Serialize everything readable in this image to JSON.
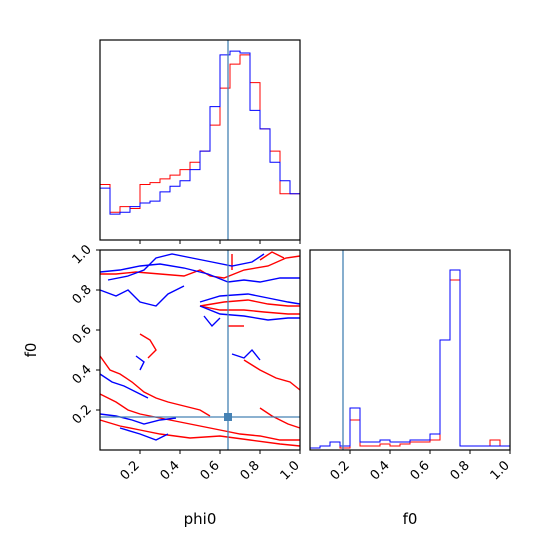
{
  "chart_data": {
    "type": "corner",
    "parameters": [
      "phi0",
      "f0"
    ],
    "xlabels": [
      "phi0",
      "f0"
    ],
    "ylabels": [
      "",
      "f0"
    ],
    "ranges": {
      "phi0": [
        0,
        1
      ],
      "f0": [
        0,
        1
      ]
    },
    "ticks": {
      "phi0": [
        "0.2",
        "0.4",
        "0.6",
        "0.8",
        "1.0"
      ],
      "f0": [
        "0.2",
        "0.4",
        "0.6",
        "0.8",
        "1.0"
      ]
    },
    "truths": {
      "phi0": 0.64,
      "f0": 0.165
    },
    "colors": {
      "red": "#ff0000",
      "blue": "#0000ff",
      "truth": "#4682b4"
    },
    "histograms": {
      "phi0": {
        "bin_edges": [
          0.0,
          0.05,
          0.1,
          0.15,
          0.2,
          0.25,
          0.3,
          0.35,
          0.4,
          0.45,
          0.5,
          0.55,
          0.6,
          0.65,
          0.7,
          0.75,
          0.8,
          0.85,
          0.9,
          0.95,
          1.0
        ],
        "red": [
          0.3,
          0.15,
          0.18,
          0.17,
          0.3,
          0.31,
          0.33,
          0.35,
          0.38,
          0.42,
          0.48,
          0.62,
          0.82,
          0.95,
          1.0,
          0.85,
          0.6,
          0.48,
          0.25,
          0.25
        ],
        "blue": [
          0.28,
          0.14,
          0.15,
          0.18,
          0.2,
          0.21,
          0.26,
          0.29,
          0.32,
          0.38,
          0.48,
          0.72,
          1.0,
          1.02,
          1.01,
          0.7,
          0.6,
          0.42,
          0.32,
          0.25
        ]
      },
      "f0": {
        "bin_edges": [
          0.0,
          0.05,
          0.1,
          0.15,
          0.2,
          0.25,
          0.3,
          0.35,
          0.4,
          0.45,
          0.5,
          0.55,
          0.6,
          0.65,
          0.7,
          0.75,
          0.8,
          0.85,
          0.9,
          0.95,
          1.0
        ],
        "red": [
          0.01,
          0.02,
          0.04,
          0.01,
          0.15,
          0.02,
          0.02,
          0.03,
          0.02,
          0.03,
          0.04,
          0.04,
          0.05,
          0.55,
          0.85,
          0.02,
          0.02,
          0.02,
          0.05,
          0.02
        ],
        "blue": [
          0.01,
          0.02,
          0.04,
          0.02,
          0.21,
          0.04,
          0.04,
          0.05,
          0.04,
          0.04,
          0.05,
          0.05,
          0.08,
          0.55,
          0.9,
          0.02,
          0.02,
          0.02,
          0.02,
          0.02
        ]
      }
    },
    "contours_2d": {
      "x": "phi0",
      "y": "f0",
      "red": [
        [
          [
            0.0,
            0.88
          ],
          [
            0.08,
            0.88
          ],
          [
            0.18,
            0.89
          ],
          [
            0.3,
            0.88
          ],
          [
            0.42,
            0.87
          ],
          [
            0.5,
            0.9
          ],
          [
            0.55,
            0.87
          ],
          [
            0.62,
            0.86
          ],
          [
            0.72,
            0.9
          ],
          [
            0.84,
            0.92
          ],
          [
            0.93,
            0.96
          ],
          [
            1.0,
            0.97
          ]
        ],
        [
          [
            0.5,
            0.72
          ],
          [
            0.62,
            0.74
          ],
          [
            0.74,
            0.75
          ],
          [
            0.84,
            0.73
          ],
          [
            0.94,
            0.72
          ],
          [
            1.0,
            0.72
          ]
        ],
        [
          [
            0.5,
            0.72
          ],
          [
            0.6,
            0.7
          ],
          [
            0.72,
            0.7
          ],
          [
            0.82,
            0.69
          ],
          [
            0.94,
            0.68
          ],
          [
            1.0,
            0.68
          ]
        ],
        [
          [
            0.0,
            0.47
          ],
          [
            0.05,
            0.4
          ],
          [
            0.1,
            0.38
          ],
          [
            0.16,
            0.34
          ],
          [
            0.22,
            0.29
          ],
          [
            0.28,
            0.26
          ],
          [
            0.34,
            0.24
          ],
          [
            0.42,
            0.22
          ],
          [
            0.5,
            0.2
          ],
          [
            0.55,
            0.17
          ]
        ],
        [
          [
            0.0,
            0.28
          ],
          [
            0.08,
            0.24
          ],
          [
            0.14,
            0.2
          ],
          [
            0.2,
            0.18
          ],
          [
            0.3,
            0.16
          ],
          [
            0.4,
            0.14
          ],
          [
            0.5,
            0.12
          ],
          [
            0.6,
            0.1
          ],
          [
            0.7,
            0.08
          ],
          [
            0.8,
            0.07
          ],
          [
            0.9,
            0.05
          ],
          [
            1.0,
            0.05
          ]
        ],
        [
          [
            0.72,
            0.45
          ],
          [
            0.8,
            0.4
          ],
          [
            0.88,
            0.36
          ],
          [
            0.95,
            0.34
          ],
          [
            1.0,
            0.3
          ]
        ],
        [
          [
            0.0,
            0.15
          ],
          [
            0.1,
            0.12
          ],
          [
            0.2,
            0.1
          ],
          [
            0.3,
            0.08
          ],
          [
            0.45,
            0.06
          ],
          [
            0.6,
            0.07
          ],
          [
            0.75,
            0.05
          ],
          [
            0.9,
            0.03
          ],
          [
            1.0,
            0.02
          ]
        ],
        [
          [
            0.2,
            0.58
          ],
          [
            0.25,
            0.55
          ],
          [
            0.28,
            0.5
          ],
          [
            0.24,
            0.46
          ]
        ],
        [
          [
            0.66,
            0.98
          ],
          [
            0.66,
            0.9
          ]
        ],
        [
          [
            0.64,
            0.62
          ],
          [
            0.72,
            0.62
          ]
        ],
        [
          [
            0.8,
            0.95
          ],
          [
            0.86,
            0.99
          ],
          [
            0.92,
            0.96
          ]
        ],
        [
          [
            0.8,
            0.21
          ],
          [
            0.86,
            0.17
          ],
          [
            0.94,
            0.13
          ],
          [
            1.0,
            0.11
          ]
        ]
      ],
      "blue": [
        [
          [
            0.0,
            0.89
          ],
          [
            0.1,
            0.9
          ],
          [
            0.2,
            0.92
          ],
          [
            0.3,
            0.93
          ],
          [
            0.42,
            0.91
          ],
          [
            0.54,
            0.88
          ],
          [
            0.64,
            0.84
          ],
          [
            0.72,
            0.85
          ],
          [
            0.8,
            0.84
          ],
          [
            0.9,
            0.86
          ],
          [
            1.0,
            0.86
          ]
        ],
        [
          [
            0.04,
            0.85
          ],
          [
            0.14,
            0.87
          ],
          [
            0.22,
            0.9
          ],
          [
            0.28,
            0.96
          ],
          [
            0.36,
            0.98
          ],
          [
            0.46,
            0.96
          ],
          [
            0.56,
            0.94
          ],
          [
            0.66,
            0.92
          ],
          [
            0.76,
            0.94
          ],
          [
            0.82,
            0.98
          ]
        ],
        [
          [
            0.0,
            0.8
          ],
          [
            0.08,
            0.77
          ],
          [
            0.14,
            0.8
          ],
          [
            0.2,
            0.74
          ],
          [
            0.28,
            0.72
          ],
          [
            0.34,
            0.78
          ],
          [
            0.42,
            0.82
          ]
        ],
        [
          [
            0.5,
            0.74
          ],
          [
            0.6,
            0.77
          ],
          [
            0.74,
            0.78
          ],
          [
            0.84,
            0.76
          ],
          [
            0.94,
            0.74
          ],
          [
            1.0,
            0.73
          ]
        ],
        [
          [
            0.5,
            0.72
          ],
          [
            0.6,
            0.68
          ],
          [
            0.72,
            0.67
          ],
          [
            0.84,
            0.65
          ],
          [
            0.94,
            0.66
          ],
          [
            1.0,
            0.66
          ]
        ],
        [
          [
            0.0,
            0.38
          ],
          [
            0.06,
            0.34
          ],
          [
            0.12,
            0.32
          ],
          [
            0.18,
            0.29
          ],
          [
            0.24,
            0.26
          ]
        ],
        [
          [
            0.0,
            0.18
          ],
          [
            0.08,
            0.17
          ],
          [
            0.16,
            0.15
          ],
          [
            0.22,
            0.13
          ],
          [
            0.3,
            0.15
          ],
          [
            0.38,
            0.16
          ]
        ],
        [
          [
            0.1,
            0.11
          ],
          [
            0.2,
            0.08
          ],
          [
            0.28,
            0.05
          ],
          [
            0.34,
            0.08
          ]
        ],
        [
          [
            0.52,
            0.67
          ],
          [
            0.56,
            0.62
          ],
          [
            0.6,
            0.66
          ]
        ],
        [
          [
            0.66,
            0.48
          ],
          [
            0.72,
            0.46
          ],
          [
            0.76,
            0.5
          ],
          [
            0.8,
            0.45
          ]
        ],
        [
          [
            0.18,
            0.47
          ],
          [
            0.22,
            0.44
          ],
          [
            0.2,
            0.4
          ]
        ]
      ],
      "truth_marker": [
        0.64,
        0.165
      ]
    }
  }
}
